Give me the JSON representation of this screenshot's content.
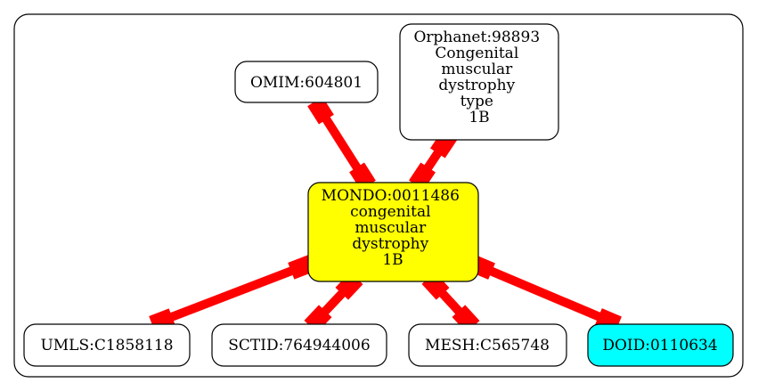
{
  "diagram": {
    "colors": {
      "edge": "#ff0000",
      "center_fill": "#ffff00",
      "highlight_fill": "#00ffff",
      "default_fill": "#ffffff",
      "stroke": "#000000"
    },
    "nodes": {
      "omim": {
        "lines": [
          "OMIM:604801"
        ]
      },
      "orphanet": {
        "lines": [
          "Orphanet:98893",
          "Congenital",
          "muscular",
          "dystrophy",
          "type",
          "1B"
        ]
      },
      "mondo": {
        "lines": [
          "MONDO:0011486",
          "congenital",
          "muscular",
          "dystrophy",
          "1B"
        ]
      },
      "umls": {
        "lines": [
          "UMLS:C1858118"
        ]
      },
      "sctid": {
        "lines": [
          "SCTID:764944006"
        ]
      },
      "mesh": {
        "lines": [
          "MESH:C565748"
        ]
      },
      "doid": {
        "lines": [
          "DOID:0110634"
        ]
      }
    }
  }
}
